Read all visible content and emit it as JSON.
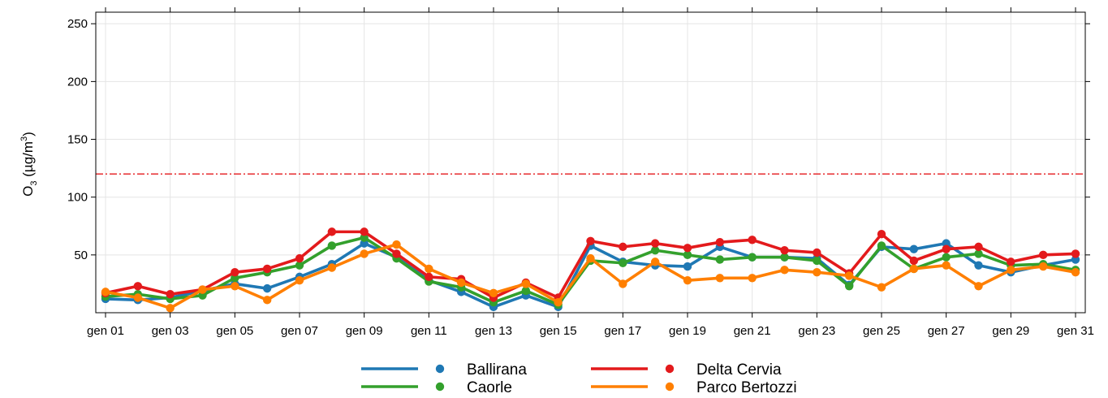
{
  "chart_data": {
    "type": "line",
    "ylabel_main": "O",
    "ylabel_sub": "3",
    "ylabel_unit_pre": " (µg/m",
    "ylabel_unit_sup": "3",
    "ylabel_unit_post": ")",
    "ylim": [
      0,
      260
    ],
    "yticks": [
      50,
      100,
      150,
      200,
      250
    ],
    "x": [
      "gen 01",
      "gen 02",
      "gen 03",
      "gen 04",
      "gen 05",
      "gen 06",
      "gen 07",
      "gen 08",
      "gen 09",
      "gen 10",
      "gen 11",
      "gen 12",
      "gen 13",
      "gen 14",
      "gen 15",
      "gen 16",
      "gen 17",
      "gen 18",
      "gen 19",
      "gen 20",
      "gen 21",
      "gen 22",
      "gen 23",
      "gen 24",
      "gen 25",
      "gen 26",
      "gen 27",
      "gen 28",
      "gen 29",
      "gen 30",
      "gen 31"
    ],
    "xticks": [
      "gen 01",
      "gen 03",
      "gen 05",
      "gen 07",
      "gen 09",
      "gen 11",
      "gen 13",
      "gen 15",
      "gen 17",
      "gen 19",
      "gen 21",
      "gen 23",
      "gen 25",
      "gen 27",
      "gen 29",
      "gen 31"
    ],
    "grid": true,
    "threshold": {
      "value": 120,
      "color": "#e41a1c",
      "style": "dash-dot"
    },
    "legend_position": "bottom",
    "series": [
      {
        "name": "Ballirana",
        "color": "#1f78b4",
        "values": [
          12,
          11,
          13,
          19,
          25,
          21,
          31,
          42,
          60,
          48,
          28,
          18,
          5,
          15,
          5,
          58,
          44,
          41,
          40,
          57,
          48,
          48,
          47,
          24,
          57,
          55,
          60,
          41,
          35,
          41,
          46
        ]
      },
      {
        "name": "Caorle",
        "color": "#33a02c",
        "values": [
          14,
          16,
          12,
          15,
          30,
          35,
          41,
          58,
          65,
          47,
          27,
          22,
          9,
          19,
          7,
          45,
          43,
          54,
          50,
          46,
          48,
          48,
          45,
          23,
          58,
          38,
          48,
          51,
          41,
          42,
          37
        ]
      },
      {
        "name": "Delta Cervia",
        "color": "#e31a1c",
        "values": [
          17,
          23,
          16,
          20,
          35,
          38,
          47,
          70,
          70,
          51,
          31,
          29,
          13,
          26,
          13,
          62,
          57,
          60,
          56,
          61,
          63,
          54,
          52,
          34,
          68,
          45,
          55,
          57,
          44,
          50,
          51
        ]
      },
      {
        "name": "Parco Bertozzi",
        "color": "#ff7f00",
        "values": [
          18,
          13,
          4,
          20,
          23,
          11,
          28,
          39,
          51,
          59,
          38,
          26,
          17,
          25,
          9,
          47,
          25,
          44,
          28,
          30,
          30,
          37,
          35,
          32,
          22,
          38,
          41,
          23,
          37,
          40,
          35
        ]
      }
    ]
  }
}
